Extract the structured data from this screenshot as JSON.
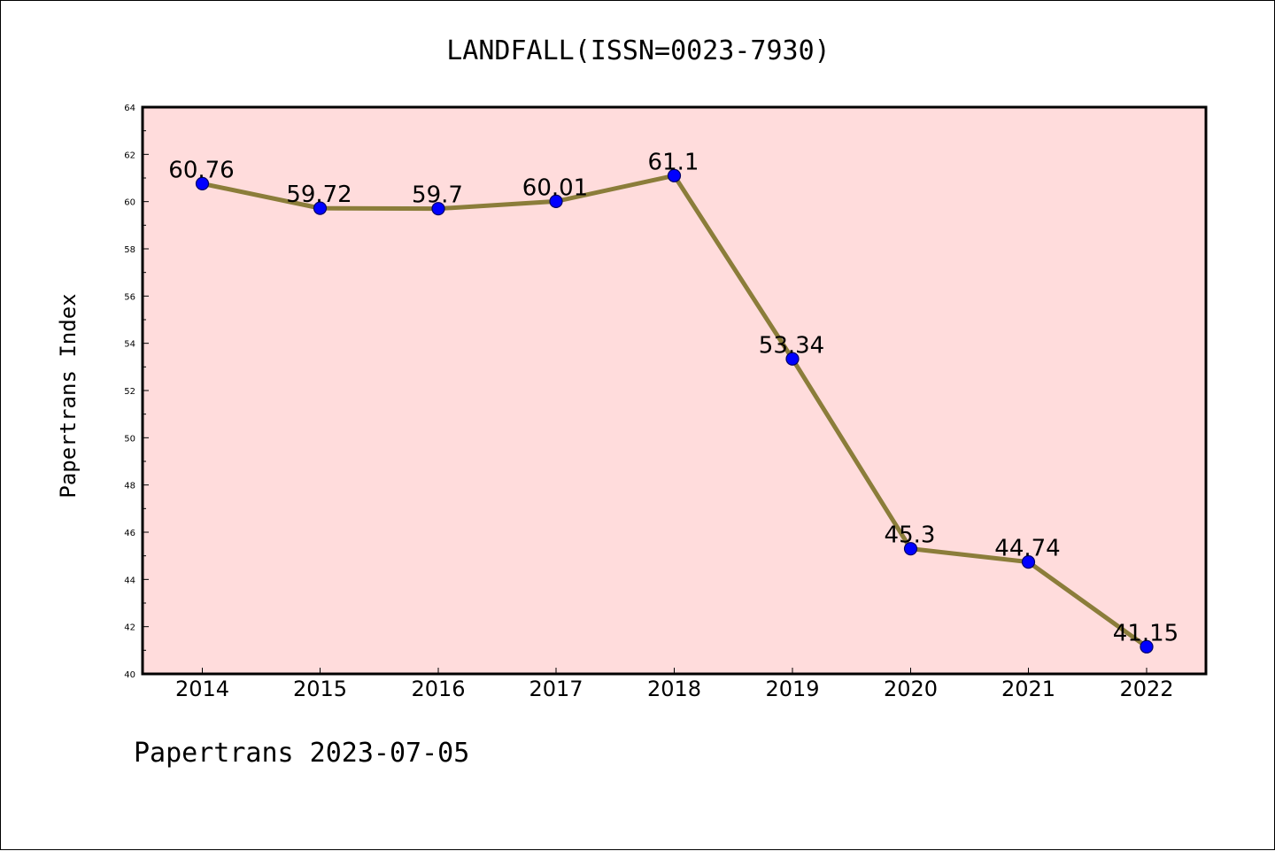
{
  "chart_data": {
    "type": "line",
    "title": "LANDFALL(ISSN=0023-7930)",
    "ylabel": "Papertrans Index",
    "xlabel": "",
    "categories": [
      "2014",
      "2015",
      "2016",
      "2017",
      "2018",
      "2019",
      "2020",
      "2021",
      "2022"
    ],
    "values": [
      60.76,
      59.72,
      59.7,
      60.01,
      61.1,
      53.34,
      45.3,
      44.74,
      41.15
    ],
    "data_labels": [
      "60.76",
      "59.72",
      "59.7",
      "60.01",
      "61.1",
      "53.34",
      "45.3",
      "44.74",
      "41.15"
    ],
    "ylim": [
      40,
      64
    ],
    "yticks": [
      40,
      42,
      44,
      46,
      48,
      50,
      52,
      54,
      56,
      58,
      60,
      62,
      64
    ],
    "grid": false,
    "colors": {
      "plot_background": "#ffdcdc",
      "line": "#8b7d3a",
      "marker": "#0000ff",
      "marker_edge": "#000066"
    }
  },
  "footer": {
    "text": "Papertrans 2023-07-05"
  }
}
